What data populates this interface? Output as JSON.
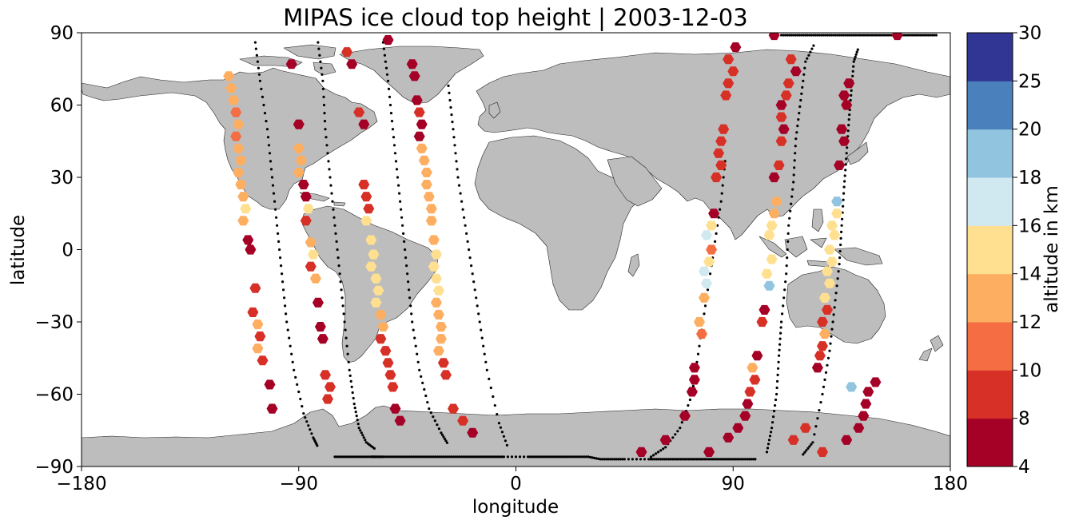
{
  "chart_data": {
    "type": "scatter",
    "title": "MIPAS ice cloud top height | 2003-12-03",
    "xlabel": "longitude",
    "ylabel": "latitude",
    "xlim": [
      -180,
      180
    ],
    "ylim": [
      -90,
      90
    ],
    "xticks": [
      -180,
      -90,
      0,
      90,
      180
    ],
    "yticks": [
      -90,
      -60,
      -30,
      0,
      30,
      60,
      90
    ],
    "xtick_labels": [
      "−180",
      "−90",
      "0",
      "90",
      "180"
    ],
    "ytick_labels": [
      "−90",
      "−60",
      "−30",
      "0",
      "30",
      "60",
      "90"
    ],
    "land_color": "#bdbdbd",
    "colorbar": {
      "label": "altitude in km",
      "boundaries": [
        4,
        8,
        10,
        12,
        14,
        16,
        18,
        20,
        25,
        30
      ],
      "tick_labels": [
        "4",
        "8",
        "10",
        "12",
        "14",
        "16",
        "18",
        "20",
        "25",
        "30"
      ],
      "colors": [
        "#a50026",
        "#d73027",
        "#f46d43",
        "#fdae61",
        "#fee090",
        "#d0e8f0",
        "#91c4de",
        "#4a80bb",
        "#313695"
      ]
    },
    "orbit_tracks": [
      {
        "lon": [
          -108,
          -106,
          -103,
          -101,
          -99,
          -97,
          -95,
          -92,
          -88,
          -84,
          -82
        ],
        "lat": [
          86,
          70,
          50,
          30,
          10,
          -10,
          -30,
          -50,
          -68,
          -78,
          -82
        ]
      },
      {
        "lon": [
          -82,
          -80,
          -79,
          -77,
          -75,
          -73,
          -71,
          -69,
          -67,
          -65,
          -62,
          -58
        ],
        "lat": [
          86,
          70,
          50,
          30,
          10,
          -10,
          -30,
          -50,
          -64,
          -74,
          -80,
          -83
        ]
      },
      {
        "lon": [
          -55,
          -53,
          -51,
          -49,
          -47,
          -45,
          -43,
          -40,
          -36,
          -31,
          -28
        ],
        "lat": [
          86,
          70,
          50,
          30,
          10,
          -10,
          -30,
          -50,
          -66,
          -76,
          -81
        ]
      },
      {
        "lon": [
          -28,
          -26,
          -24,
          -21,
          -18,
          -15,
          -12,
          -7,
          -3
        ],
        "lat": [
          68,
          50,
          30,
          10,
          -10,
          -30,
          -50,
          -72,
          -83
        ]
      },
      {
        "lon": [
          56,
          62,
          68,
          73,
          76,
          79,
          82,
          85,
          87
        ],
        "lat": [
          -86,
          -82,
          -74,
          -60,
          -40,
          -20,
          0,
          20,
          40
        ]
      },
      {
        "lon": [
          104,
          106,
          108,
          109,
          110,
          112,
          113,
          115,
          116,
          118,
          120,
          124
        ],
        "lat": [
          -84,
          -74,
          -60,
          -44,
          -30,
          -10,
          10,
          28,
          46,
          62,
          78,
          86
        ]
      },
      {
        "lon": [
          119,
          123,
          127,
          130,
          132,
          134,
          135,
          136,
          137,
          138,
          139,
          140,
          142
        ],
        "lat": [
          -85,
          -80,
          -60,
          -42,
          -24,
          -6,
          10,
          26,
          40,
          54,
          66,
          78,
          84
        ]
      },
      {
        "lon": [
          -75,
          -70,
          -65,
          -60,
          -58,
          -55,
          -50,
          -45,
          -40,
          -35,
          -30,
          -25,
          -20,
          -15,
          -10,
          -5,
          5,
          10,
          15,
          20,
          25,
          30,
          35,
          40,
          45,
          55,
          60,
          65,
          70,
          75,
          80,
          85,
          90,
          95,
          100
        ],
        "lat": [
          -86,
          -86,
          -86,
          -86,
          -86,
          -86,
          -86,
          -86,
          -86,
          -86,
          -86,
          -86,
          -86,
          -86,
          -86,
          -86,
          -86,
          -86,
          -86,
          -86,
          -86,
          -86,
          -87,
          -87,
          -87,
          -87,
          -87,
          -87,
          -87,
          -87,
          -87,
          -87,
          -87,
          -87,
          -87
        ]
      },
      {
        "lon": [
          110,
          115,
          120,
          125,
          130,
          135,
          140,
          145,
          150,
          155,
          160,
          165,
          170,
          175
        ],
        "lat": [
          89,
          89,
          89,
          89,
          89,
          89,
          89,
          89,
          89,
          89,
          89,
          89,
          89,
          89
        ]
      }
    ],
    "points": [
      {
        "lon": -119,
        "lat": 72,
        "z": 12
      },
      {
        "lon": -118,
        "lat": 67,
        "z": 13
      },
      {
        "lon": -117,
        "lat": 62,
        "z": 13
      },
      {
        "lon": -116,
        "lat": 57,
        "z": 10
      },
      {
        "lon": -115,
        "lat": 52,
        "z": 13
      },
      {
        "lon": -116,
        "lat": 47,
        "z": 10
      },
      {
        "lon": -115,
        "lat": 42,
        "z": 13
      },
      {
        "lon": -114,
        "lat": 37,
        "z": 13
      },
      {
        "lon": -115,
        "lat": 32,
        "z": 13
      },
      {
        "lon": -114,
        "lat": 27,
        "z": 13
      },
      {
        "lon": -113,
        "lat": 22,
        "z": 13
      },
      {
        "lon": -112,
        "lat": 17,
        "z": 15
      },
      {
        "lon": -113,
        "lat": 12,
        "z": 13
      },
      {
        "lon": -111,
        "lat": 4,
        "z": 6
      },
      {
        "lon": -110,
        "lat": 0,
        "z": 6
      },
      {
        "lon": -108,
        "lat": -16,
        "z": 9
      },
      {
        "lon": -109,
        "lat": -26,
        "z": 9
      },
      {
        "lon": -107,
        "lat": -31,
        "z": 13
      },
      {
        "lon": -106,
        "lat": -36,
        "z": 9
      },
      {
        "lon": -107,
        "lat": -41,
        "z": 13
      },
      {
        "lon": -105,
        "lat": -46,
        "z": 9
      },
      {
        "lon": -102,
        "lat": -56,
        "z": 6
      },
      {
        "lon": -101,
        "lat": -66,
        "z": 6
      },
      {
        "lon": -93,
        "lat": 77,
        "z": 6
      },
      {
        "lon": -90,
        "lat": 52,
        "z": 6
      },
      {
        "lon": -90,
        "lat": 42,
        "z": 13
      },
      {
        "lon": -89,
        "lat": 37,
        "z": 13
      },
      {
        "lon": -90,
        "lat": 32,
        "z": 13
      },
      {
        "lon": -88,
        "lat": 27,
        "z": 6
      },
      {
        "lon": -87,
        "lat": 22,
        "z": 6
      },
      {
        "lon": -86,
        "lat": 17,
        "z": 15
      },
      {
        "lon": -87,
        "lat": 12,
        "z": 9
      },
      {
        "lon": -85,
        "lat": 3,
        "z": 13
      },
      {
        "lon": -84,
        "lat": -2,
        "z": 15
      },
      {
        "lon": -85,
        "lat": -7,
        "z": 9
      },
      {
        "lon": -83,
        "lat": -12,
        "z": 13
      },
      {
        "lon": -82,
        "lat": -22,
        "z": 6
      },
      {
        "lon": -81,
        "lat": -32,
        "z": 6
      },
      {
        "lon": -80,
        "lat": -37,
        "z": 6
      },
      {
        "lon": -79,
        "lat": -52,
        "z": 9
      },
      {
        "lon": -77,
        "lat": -57,
        "z": 9
      },
      {
        "lon": -78,
        "lat": -62,
        "z": 9
      },
      {
        "lon": -70,
        "lat": 82,
        "z": 9
      },
      {
        "lon": -68,
        "lat": 77,
        "z": 6
      },
      {
        "lon": -65,
        "lat": 57,
        "z": 9
      },
      {
        "lon": -63,
        "lat": 52,
        "z": 6
      },
      {
        "lon": -63,
        "lat": 27,
        "z": 9
      },
      {
        "lon": -62,
        "lat": 22,
        "z": 9
      },
      {
        "lon": -61,
        "lat": 17,
        "z": 9
      },
      {
        "lon": -62,
        "lat": 12,
        "z": 15
      },
      {
        "lon": -60,
        "lat": 4,
        "z": 15
      },
      {
        "lon": -59,
        "lat": -2,
        "z": 15
      },
      {
        "lon": -60,
        "lat": -7,
        "z": 15
      },
      {
        "lon": -58,
        "lat": -12,
        "z": 15
      },
      {
        "lon": -57,
        "lat": -17,
        "z": 15
      },
      {
        "lon": -58,
        "lat": -22,
        "z": 15
      },
      {
        "lon": -56,
        "lat": -27,
        "z": 13
      },
      {
        "lon": -55,
        "lat": -32,
        "z": 13
      },
      {
        "lon": -56,
        "lat": -37,
        "z": 9
      },
      {
        "lon": -54,
        "lat": -42,
        "z": 9
      },
      {
        "lon": -53,
        "lat": -47,
        "z": 9
      },
      {
        "lon": -52,
        "lat": -52,
        "z": 9
      },
      {
        "lon": -51,
        "lat": -57,
        "z": 9
      },
      {
        "lon": -50,
        "lat": -66,
        "z": 6
      },
      {
        "lon": -48,
        "lat": -71,
        "z": 6
      },
      {
        "lon": -53,
        "lat": 87,
        "z": 6
      },
      {
        "lon": -43,
        "lat": 77,
        "z": 6
      },
      {
        "lon": -42,
        "lat": 72,
        "z": 6
      },
      {
        "lon": -41,
        "lat": 62,
        "z": 6
      },
      {
        "lon": -40,
        "lat": 57,
        "z": 9
      },
      {
        "lon": -39,
        "lat": 52,
        "z": 6
      },
      {
        "lon": -40,
        "lat": 47,
        "z": 6
      },
      {
        "lon": -39,
        "lat": 42,
        "z": 13
      },
      {
        "lon": -38,
        "lat": 37,
        "z": 13
      },
      {
        "lon": -37,
        "lat": 32,
        "z": 13
      },
      {
        "lon": -37,
        "lat": 27,
        "z": 13
      },
      {
        "lon": -36,
        "lat": 22,
        "z": 13
      },
      {
        "lon": -35,
        "lat": 17,
        "z": 13
      },
      {
        "lon": -35,
        "lat": 12,
        "z": 13
      },
      {
        "lon": -34,
        "lat": 4,
        "z": 13
      },
      {
        "lon": -33,
        "lat": -2,
        "z": 15
      },
      {
        "lon": -34,
        "lat": -7,
        "z": 15
      },
      {
        "lon": -33,
        "lat": -12,
        "z": 15
      },
      {
        "lon": -32,
        "lat": -17,
        "z": 15
      },
      {
        "lon": -33,
        "lat": -22,
        "z": 13
      },
      {
        "lon": -32,
        "lat": -27,
        "z": 13
      },
      {
        "lon": -31,
        "lat": -32,
        "z": 13
      },
      {
        "lon": -31,
        "lat": -37,
        "z": 13
      },
      {
        "lon": -32,
        "lat": -42,
        "z": 13
      },
      {
        "lon": -30,
        "lat": -47,
        "z": 9
      },
      {
        "lon": -29,
        "lat": -52,
        "z": 9
      },
      {
        "lon": -26,
        "lat": -66,
        "z": 9
      },
      {
        "lon": -22,
        "lat": -71,
        "z": 9
      },
      {
        "lon": -18,
        "lat": -76,
        "z": 6
      },
      {
        "lon": 52,
        "lat": -84,
        "z": 6
      },
      {
        "lon": 62,
        "lat": -79,
        "z": 6
      },
      {
        "lon": 70,
        "lat": -69,
        "z": 6
      },
      {
        "lon": 73,
        "lat": -59,
        "z": 6
      },
      {
        "lon": 74,
        "lat": -54,
        "z": 6
      },
      {
        "lon": 74,
        "lat": -49,
        "z": 6
      },
      {
        "lon": 77,
        "lat": -35,
        "z": 11
      },
      {
        "lon": 76,
        "lat": -30,
        "z": 13
      },
      {
        "lon": 78,
        "lat": -20,
        "z": 13
      },
      {
        "lon": 79,
        "lat": -14,
        "z": 17
      },
      {
        "lon": 78,
        "lat": -9,
        "z": 17
      },
      {
        "lon": 80,
        "lat": -5,
        "z": 15
      },
      {
        "lon": 81,
        "lat": 0,
        "z": 11
      },
      {
        "lon": 79,
        "lat": 6,
        "z": 17
      },
      {
        "lon": 81,
        "lat": 10,
        "z": 15
      },
      {
        "lon": 82,
        "lat": 15,
        "z": 6
      },
      {
        "lon": 83,
        "lat": 30,
        "z": 9
      },
      {
        "lon": 85,
        "lat": 35,
        "z": 9
      },
      {
        "lon": 84,
        "lat": 40,
        "z": 9
      },
      {
        "lon": 85,
        "lat": 45,
        "z": 9
      },
      {
        "lon": 86,
        "lat": 50,
        "z": 9
      },
      {
        "lon": 87,
        "lat": 64,
        "z": 9
      },
      {
        "lon": 88,
        "lat": 69,
        "z": 9
      },
      {
        "lon": 90,
        "lat": 74,
        "z": 9
      },
      {
        "lon": 88,
        "lat": 79,
        "z": 9
      },
      {
        "lon": 91,
        "lat": 84,
        "z": 6
      },
      {
        "lon": 80,
        "lat": -84,
        "z": 6
      },
      {
        "lon": 88,
        "lat": -78,
        "z": 6
      },
      {
        "lon": 92,
        "lat": -74,
        "z": 6
      },
      {
        "lon": 95,
        "lat": -69,
        "z": 6
      },
      {
        "lon": 96,
        "lat": -64,
        "z": 6
      },
      {
        "lon": 97,
        "lat": -59,
        "z": 9
      },
      {
        "lon": 99,
        "lat": -54,
        "z": 9
      },
      {
        "lon": 98,
        "lat": -49,
        "z": 13
      },
      {
        "lon": 100,
        "lat": -44,
        "z": 6
      },
      {
        "lon": 102,
        "lat": -30,
        "z": 9
      },
      {
        "lon": 103,
        "lat": -25,
        "z": 6
      },
      {
        "lon": 105,
        "lat": -15,
        "z": 19
      },
      {
        "lon": 104,
        "lat": -10,
        "z": 15
      },
      {
        "lon": 106,
        "lat": -4,
        "z": 15
      },
      {
        "lon": 105,
        "lat": 6,
        "z": 15
      },
      {
        "lon": 106,
        "lat": 10,
        "z": 15
      },
      {
        "lon": 107,
        "lat": 15,
        "z": 13
      },
      {
        "lon": 108,
        "lat": 20,
        "z": 13
      },
      {
        "lon": 107,
        "lat": 30,
        "z": 6
      },
      {
        "lon": 109,
        "lat": 35,
        "z": 9
      },
      {
        "lon": 110,
        "lat": 45,
        "z": 9
      },
      {
        "lon": 111,
        "lat": 50,
        "z": 6
      },
      {
        "lon": 110,
        "lat": 55,
        "z": 9
      },
      {
        "lon": 110,
        "lat": 60,
        "z": 6
      },
      {
        "lon": 112,
        "lat": 64,
        "z": 9
      },
      {
        "lon": 113,
        "lat": 69,
        "z": 9
      },
      {
        "lon": 116,
        "lat": 74,
        "z": 6
      },
      {
        "lon": 114,
        "lat": 79,
        "z": 9
      },
      {
        "lon": 107,
        "lat": 89,
        "z": 6
      },
      {
        "lon": 115,
        "lat": -79,
        "z": 9
      },
      {
        "lon": 120,
        "lat": -74,
        "z": 9
      },
      {
        "lon": 127,
        "lat": -84,
        "z": 9
      },
      {
        "lon": 125,
        "lat": -49,
        "z": 6
      },
      {
        "lon": 126,
        "lat": -44,
        "z": 9
      },
      {
        "lon": 127,
        "lat": -40,
        "z": 9
      },
      {
        "lon": 128,
        "lat": -35,
        "z": 13
      },
      {
        "lon": 127,
        "lat": -30,
        "z": 9
      },
      {
        "lon": 129,
        "lat": -25,
        "z": 9
      },
      {
        "lon": 128,
        "lat": -20,
        "z": 15
      },
      {
        "lon": 130,
        "lat": -14,
        "z": 15
      },
      {
        "lon": 129,
        "lat": -9,
        "z": 15
      },
      {
        "lon": 131,
        "lat": -5,
        "z": 15
      },
      {
        "lon": 130,
        "lat": 0,
        "z": 15
      },
      {
        "lon": 132,
        "lat": 6,
        "z": 15
      },
      {
        "lon": 131,
        "lat": 10,
        "z": 15
      },
      {
        "lon": 133,
        "lat": 15,
        "z": 15
      },
      {
        "lon": 133,
        "lat": 20,
        "z": 19
      },
      {
        "lon": 134,
        "lat": 35,
        "z": 6
      },
      {
        "lon": 136,
        "lat": 45,
        "z": 6
      },
      {
        "lon": 135,
        "lat": 50,
        "z": 6
      },
      {
        "lon": 137,
        "lat": 60,
        "z": 6
      },
      {
        "lon": 136,
        "lat": 64,
        "z": 6
      },
      {
        "lon": 138,
        "lat": 69,
        "z": 6
      },
      {
        "lon": 137,
        "lat": -79,
        "z": 6
      },
      {
        "lon": 142,
        "lat": -74,
        "z": 6
      },
      {
        "lon": 144,
        "lat": -69,
        "z": 6
      },
      {
        "lon": 145,
        "lat": -64,
        "z": 6
      },
      {
        "lon": 146,
        "lat": -59,
        "z": 6
      },
      {
        "lon": 149,
        "lat": -55,
        "z": 6
      },
      {
        "lon": 139,
        "lat": -57,
        "z": 19
      },
      {
        "lon": 158,
        "lat": 89,
        "z": 6
      }
    ]
  }
}
